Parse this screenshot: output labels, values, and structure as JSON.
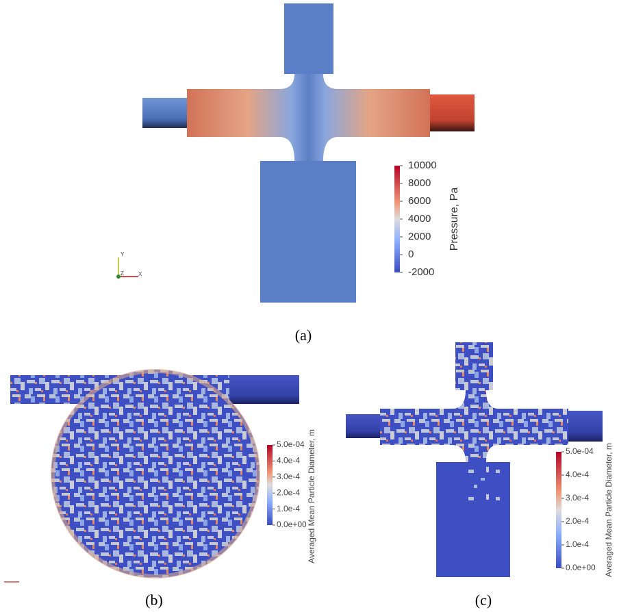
{
  "panels": [
    {
      "label": "(a)",
      "colorbar": {
        "title": "Pressure, Pa",
        "ticks": [
          "10000",
          "8000",
          "6000",
          "4000",
          "2000",
          "0",
          "-2000"
        ]
      },
      "axes": {
        "y": "Y",
        "z": "Z",
        "x": "X"
      }
    },
    {
      "label": "(b)",
      "colorbar": {
        "title": "Averaged Mean Particle Diameter, m",
        "ticks": [
          "5.0e-04",
          "4.0e-4",
          "3.0e-4",
          "2.0e-4",
          "1.0e-4",
          "0.0e+00"
        ]
      }
    },
    {
      "label": "(c)",
      "colorbar": {
        "title": "Averaged Mean Particle Diameter, m",
        "ticks": [
          "5.0e-04",
          "4.0e-4",
          "3.0e-4",
          "2.0e-4",
          "1.0e-4",
          "0.0e+00"
        ]
      }
    }
  ]
}
